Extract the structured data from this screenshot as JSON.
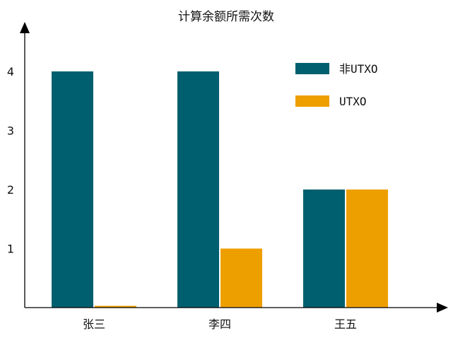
{
  "chart_data": {
    "type": "bar",
    "title": "计算余额所需次数",
    "categories": [
      "张三",
      "李四",
      "王五"
    ],
    "series": [
      {
        "name": "非UTXO",
        "values": [
          4,
          4,
          2
        ],
        "color": "#005f6e"
      },
      {
        "name": "UTXO",
        "values": [
          0.03,
          1,
          2
        ],
        "color": "#ee9f00"
      }
    ],
    "y_ticks": [
      "1",
      "2",
      "3",
      "4"
    ],
    "ylim": [
      0,
      5
    ],
    "grid": false,
    "legend_position": "top-right"
  }
}
